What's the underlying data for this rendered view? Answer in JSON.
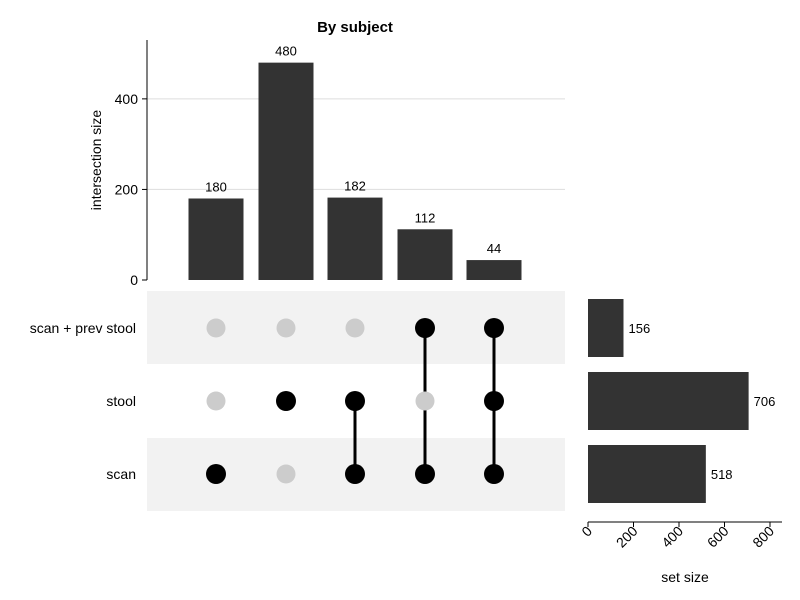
{
  "chart_data": {
    "type": "upset",
    "title": "By subject",
    "intersections": {
      "ylabel": "intersection size",
      "ylim": [
        0,
        530
      ],
      "yticks": [
        0,
        200,
        400
      ],
      "values": [
        180,
        480,
        182,
        112,
        44
      ],
      "members": [
        [
          "scan"
        ],
        [
          "stool"
        ],
        [
          "stool",
          "scan"
        ],
        [
          "scan + prev stool",
          "scan"
        ],
        [
          "scan + prev stool",
          "stool",
          "scan"
        ]
      ]
    },
    "sets": {
      "names": [
        "scan + prev stool",
        "stool",
        "scan"
      ],
      "sizes": [
        156,
        706,
        518
      ],
      "xlabel": "set size",
      "xlim": [
        0,
        800
      ],
      "xticks": [
        0,
        200,
        400,
        600,
        800
      ]
    },
    "colors": {
      "bar": "#333333",
      "dot_active": "#000000",
      "dot_inactive": "#cccccc",
      "band": "#f2f2f2",
      "grid": "#dddddd"
    }
  }
}
